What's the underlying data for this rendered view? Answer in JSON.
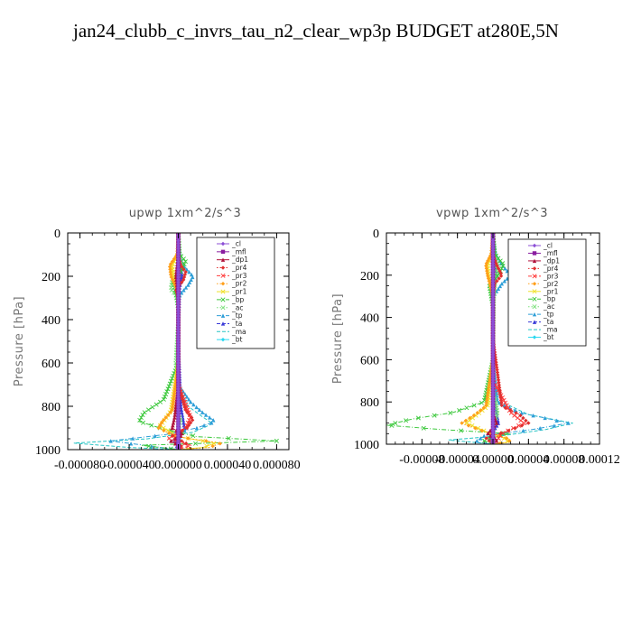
{
  "title": "jan24_clubb_c_invrs_tau_n2_clear_wp3p  BUDGET at280E,5N",
  "legend_items": [
    {
      "label": "_cl",
      "color": "#8c4fd6",
      "marker": "diamond",
      "dash": "solid"
    },
    {
      "label": "_mfl",
      "color": "#8a1ea0",
      "marker": "square",
      "dash": "solid"
    },
    {
      "label": "_dp1",
      "color": "#b0103a",
      "marker": "triangle",
      "dash": "solid"
    },
    {
      "label": "_pr4",
      "color": "#e03030",
      "marker": "diamond",
      "dash": "dot"
    },
    {
      "label": "_pr3",
      "color": "#ff3b3b",
      "marker": "x",
      "dash": "dash"
    },
    {
      "label": "_pr2",
      "color": "#ff9f1a",
      "marker": "diamond",
      "dash": "dot"
    },
    {
      "label": "_pr1",
      "color": "#f0e02a",
      "marker": "x",
      "dash": "solid"
    },
    {
      "label": "_bp",
      "color": "#3cc83c",
      "marker": "x",
      "dash": "dashdot"
    },
    {
      "label": "_ac",
      "color": "#7be07b",
      "marker": "x",
      "dash": "dot"
    },
    {
      "label": "_tp",
      "color": "#2f9fd8",
      "marker": "triangle",
      "dash": "dashdot"
    },
    {
      "label": "_ta",
      "color": "#3a3ad8",
      "marker": "triangle",
      "dash": "dash"
    },
    {
      "label": "_ma",
      "color": "#25c4c4",
      "marker": "none",
      "dash": "dash"
    },
    {
      "label": "_bt",
      "color": "#2ad8f0",
      "marker": "diamond",
      "dash": "solid"
    }
  ],
  "chart_data": [
    {
      "type": "line",
      "title": "upwp   1xm^2/s^3",
      "ylabel": "Pressure [hPa]",
      "xlim": [
        -9e-05,
        9e-05
      ],
      "ylim": [
        1000,
        0
      ],
      "y_reversed": true,
      "xticks": [
        -8e-05,
        -4e-05,
        0.0,
        4e-05,
        8e-05
      ],
      "xtick_labels": [
        "-0.000080",
        "-0.000040",
        "0.000000",
        "0.000040",
        "0.000080"
      ],
      "yticks": [
        0,
        200,
        400,
        600,
        800,
        1000
      ],
      "ytick_labels": [
        "0",
        "200",
        "400",
        "600",
        "800",
        "1000"
      ],
      "legend_position": "top-right",
      "series": [
        {
          "name": "_cl",
          "pressure": [
            0,
            200,
            400,
            600,
            800,
            1000
          ],
          "values": [
            0,
            0,
            0,
            0,
            0,
            0
          ]
        },
        {
          "name": "_mfl",
          "pressure": [
            0,
            200,
            400,
            600,
            800,
            1000
          ],
          "values": [
            0,
            0,
            0,
            0,
            0,
            0
          ]
        },
        {
          "name": "_dp1",
          "pressure": [
            0,
            100,
            200,
            300,
            500,
            700,
            850,
            900,
            930,
            960,
            980,
            1000
          ],
          "values": [
            0,
            0,
            -2e-06,
            0,
            0,
            0,
            -3e-06,
            -5e-06,
            4e-06,
            -6e-06,
            0,
            0
          ]
        },
        {
          "name": "_pr4",
          "pressure": [
            0,
            100,
            150,
            180,
            220,
            260,
            300,
            500,
            700,
            820,
            860,
            900,
            940,
            970,
            990,
            1000
          ],
          "values": [
            0,
            0,
            2e-06,
            6e-06,
            4e-06,
            -2e-06,
            0,
            0,
            0,
            6e-06,
            1.2e-05,
            7e-06,
            -6e-06,
            7e-06,
            0,
            0
          ]
        },
        {
          "name": "_pr3",
          "pressure": [
            0,
            700,
            850,
            900,
            950,
            980,
            1000
          ],
          "values": [
            0,
            0,
            1e-05,
            6e-06,
            -8e-06,
            1e-05,
            0
          ]
        },
        {
          "name": "_pr2",
          "pressure": [
            0,
            100,
            150,
            200,
            250,
            300,
            600,
            820,
            870,
            900,
            940,
            970,
            990,
            1000
          ],
          "values": [
            0,
            -1e-06,
            -7e-06,
            -6e-06,
            -2e-06,
            0,
            0,
            -5e-06,
            -1.3e-05,
            -1.6e-05,
            -2e-06,
            3.5e-05,
            2.5e-05,
            0
          ]
        },
        {
          "name": "_pr1",
          "pressure": [
            0,
            100,
            150,
            200,
            250,
            300,
            600,
            820,
            870,
            890,
            940,
            970,
            990,
            1000
          ],
          "values": [
            0,
            0,
            -5e-06,
            -4e-06,
            0,
            0,
            0,
            -6e-06,
            -1.2e-05,
            -1.5e-05,
            0,
            3e-05,
            2e-05,
            0
          ]
        },
        {
          "name": "_bp",
          "pressure": [
            0,
            100,
            130,
            180,
            230,
            280,
            350,
            600,
            770,
            830,
            870,
            900,
            940,
            960,
            980,
            1000
          ],
          "values": [
            0,
            1e-06,
            6e-06,
            2e-06,
            -4e-06,
            -2e-06,
            0,
            0,
            -1.2e-05,
            -2.8e-05,
            -3.2e-05,
            -1.5e-05,
            1.5e-05,
            8e-05,
            -3e-05,
            0
          ]
        },
        {
          "name": "_ac",
          "pressure": [
            0,
            100,
            150,
            220,
            260,
            300,
            400,
            600,
            700,
            780,
            820,
            860,
            900,
            950,
            1000
          ],
          "values": [
            0,
            1e-06,
            3e-06,
            -5e-06,
            -6e-06,
            0,
            0,
            -2e-06,
            0,
            0,
            -2e-06,
            2e-06,
            0,
            0,
            0
          ]
        },
        {
          "name": "_tp",
          "pressure": [
            0,
            100,
            150,
            200,
            240,
            280,
            300,
            600,
            700,
            780,
            830,
            870,
            900,
            930,
            960,
            1000
          ],
          "values": [
            0,
            1e-06,
            4e-06,
            1.2e-05,
            8e-06,
            2e-06,
            0,
            0,
            0,
            1e-05,
            2e-05,
            3e-05,
            1.5e-05,
            -1e-05,
            -5.5e-05,
            0
          ]
        },
        {
          "name": "_ta",
          "pressure": [
            0,
            150,
            200,
            250,
            500,
            800,
            900,
            960,
            1000
          ],
          "values": [
            0,
            2e-06,
            3e-06,
            1e-06,
            0,
            2e-06,
            5e-06,
            -3e-06,
            0
          ]
        },
        {
          "name": "_ma",
          "pressure": [
            0,
            200,
            300,
            500,
            700,
            800,
            850,
            880,
            920,
            950,
            970,
            990,
            1000
          ],
          "values": [
            0,
            2e-06,
            0,
            0,
            0,
            8e-06,
            2e-05,
            2.8e-05,
            1.2e-05,
            -2.5e-05,
            -8.5e-05,
            -4e-05,
            0
          ]
        },
        {
          "name": "_bt",
          "pressure": [
            0,
            400,
            800,
            950,
            1000
          ],
          "values": [
            0,
            0,
            0,
            1e-06,
            0
          ]
        }
      ]
    },
    {
      "type": "line",
      "title": "vpwp   1xm^2/s^3",
      "ylabel": "Pressure [hPa]",
      "xlim": [
        -0.00012,
        0.00012
      ],
      "ylim": [
        1000,
        0
      ],
      "y_reversed": true,
      "xticks": [
        -8e-05,
        -4e-05,
        0.0,
        4e-05,
        8e-05,
        0.00012
      ],
      "xtick_labels": [
        "-0.00008",
        "-0.00004",
        "0.00000",
        "0.00004",
        "0.00008",
        "0.00012"
      ],
      "yticks": [
        0,
        200,
        400,
        600,
        800,
        1000
      ],
      "ytick_labels": [
        "0",
        "200",
        "400",
        "600",
        "800",
        "1000"
      ],
      "legend_position": "top-right",
      "series": [
        {
          "name": "_cl",
          "pressure": [
            0,
            200,
            400,
            600,
            800,
            1000
          ],
          "values": [
            0,
            0,
            0,
            0,
            0,
            0
          ]
        },
        {
          "name": "_mfl",
          "pressure": [
            0,
            200,
            400,
            600,
            800,
            1000
          ],
          "values": [
            0,
            0,
            0,
            0,
            0,
            0
          ]
        },
        {
          "name": "_dp1",
          "pressure": [
            0,
            200,
            500,
            850,
            900,
            950,
            980,
            1000
          ],
          "values": [
            0,
            0,
            0,
            0,
            4e-06,
            -6e-06,
            5e-06,
            0
          ]
        },
        {
          "name": "_pr4",
          "pressure": [
            0,
            100,
            150,
            200,
            240,
            300,
            500,
            820,
            860,
            900,
            940,
            970,
            1000
          ],
          "values": [
            0,
            0,
            4e-06,
            1e-05,
            2e-06,
            0,
            0,
            1e-05,
            3e-05,
            4e-05,
            1.5e-05,
            -8e-06,
            0
          ]
        },
        {
          "name": "_pr3",
          "pressure": [
            0,
            700,
            850,
            900,
            950,
            980,
            1000
          ],
          "values": [
            0,
            0,
            2e-05,
            3.5e-05,
            1e-05,
            5e-06,
            0
          ]
        },
        {
          "name": "_pr2",
          "pressure": [
            0,
            100,
            150,
            200,
            250,
            300,
            600,
            820,
            860,
            900,
            940,
            970,
            990,
            1000
          ],
          "values": [
            0,
            -2e-06,
            -8e-06,
            -6e-06,
            -3e-06,
            0,
            0,
            -8e-06,
            -2e-05,
            -3.5e-05,
            -1e-05,
            1.5e-05,
            2e-05,
            0
          ]
        },
        {
          "name": "_pr1",
          "pressure": [
            0,
            100,
            150,
            200,
            250,
            300,
            600,
            820,
            860,
            900,
            940,
            970,
            990,
            1000
          ],
          "values": [
            0,
            0,
            -6e-06,
            -5e-06,
            0,
            0,
            0,
            -6e-06,
            -1.8e-05,
            -3e-05,
            -8e-06,
            1.2e-05,
            1.8e-05,
            0
          ]
        },
        {
          "name": "_bp",
          "pressure": [
            0,
            100,
            150,
            200,
            250,
            300,
            350,
            600,
            800,
            850,
            880,
            910,
            930,
            950,
            980,
            1000
          ],
          "values": [
            0,
            2e-06,
            1.2e-05,
            6e-06,
            -4e-06,
            -2e-06,
            0,
            0,
            -1e-05,
            -4.5e-05,
            -9e-05,
            -0.00012,
            -6e-05,
            2e-05,
            -1.2e-05,
            0
          ]
        },
        {
          "name": "_ac",
          "pressure": [
            0,
            100,
            150,
            200,
            300,
            600,
            750,
            800,
            850,
            900,
            950,
            1000
          ],
          "values": [
            0,
            2e-06,
            5e-06,
            3e-06,
            1e-06,
            0,
            0,
            3e-06,
            5e-06,
            2e-06,
            -1e-06,
            0
          ]
        },
        {
          "name": "_tp",
          "pressure": [
            0,
            100,
            150,
            200,
            240,
            300,
            600,
            800,
            850,
            900,
            930,
            960,
            990,
            1000
          ],
          "values": [
            0,
            3e-06,
            1e-05,
            2e-05,
            1e-05,
            0,
            0,
            5e-06,
            3e-05,
            8.5e-05,
            4.5e-05,
            -1e-05,
            -2e-05,
            0
          ]
        },
        {
          "name": "_ta",
          "pressure": [
            0,
            150,
            200,
            250,
            500,
            800,
            900,
            960,
            1000
          ],
          "values": [
            0,
            2e-06,
            4e-06,
            1e-06,
            0,
            2e-06,
            6e-06,
            -3e-06,
            0
          ]
        },
        {
          "name": "_ma",
          "pressure": [
            0,
            200,
            300,
            500,
            700,
            800,
            860,
            900,
            930,
            960,
            980,
            1000
          ],
          "values": [
            0,
            3e-06,
            0,
            0,
            0,
            1e-05,
            4e-05,
            9e-05,
            6e-05,
            1e-05,
            -5e-05,
            0
          ]
        },
        {
          "name": "_bt",
          "pressure": [
            0,
            400,
            800,
            950,
            1000
          ],
          "values": [
            0,
            0,
            0,
            1e-06,
            0
          ]
        }
      ]
    }
  ]
}
